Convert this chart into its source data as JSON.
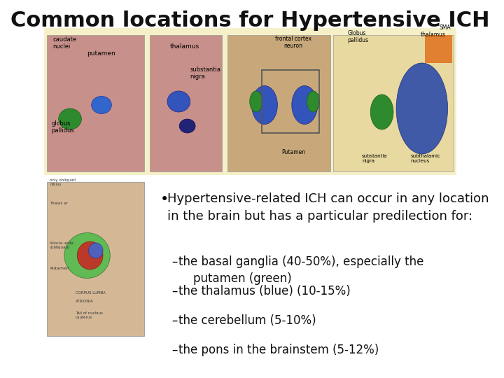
{
  "title": "Common locations for Hypertensive ICH",
  "title_fontsize": 22,
  "title_color": "#111111",
  "background_color": "#ffffff",
  "bullet_text": "Hypertensive-related ICH can occur in any location in the brain but has a particular predilection for:",
  "bullet_items": [
    "the basal ganglia (40-50%), especially the\n    putamen (green)",
    "the thalamus (blue) (10-15%)",
    "the cerebellum (5-10%)",
    "the pons in the brainstem (5-12%)"
  ],
  "top_image_bgcolor": "#f5f0c8",
  "text_fontsize": 13,
  "sub_fontsize": 12
}
